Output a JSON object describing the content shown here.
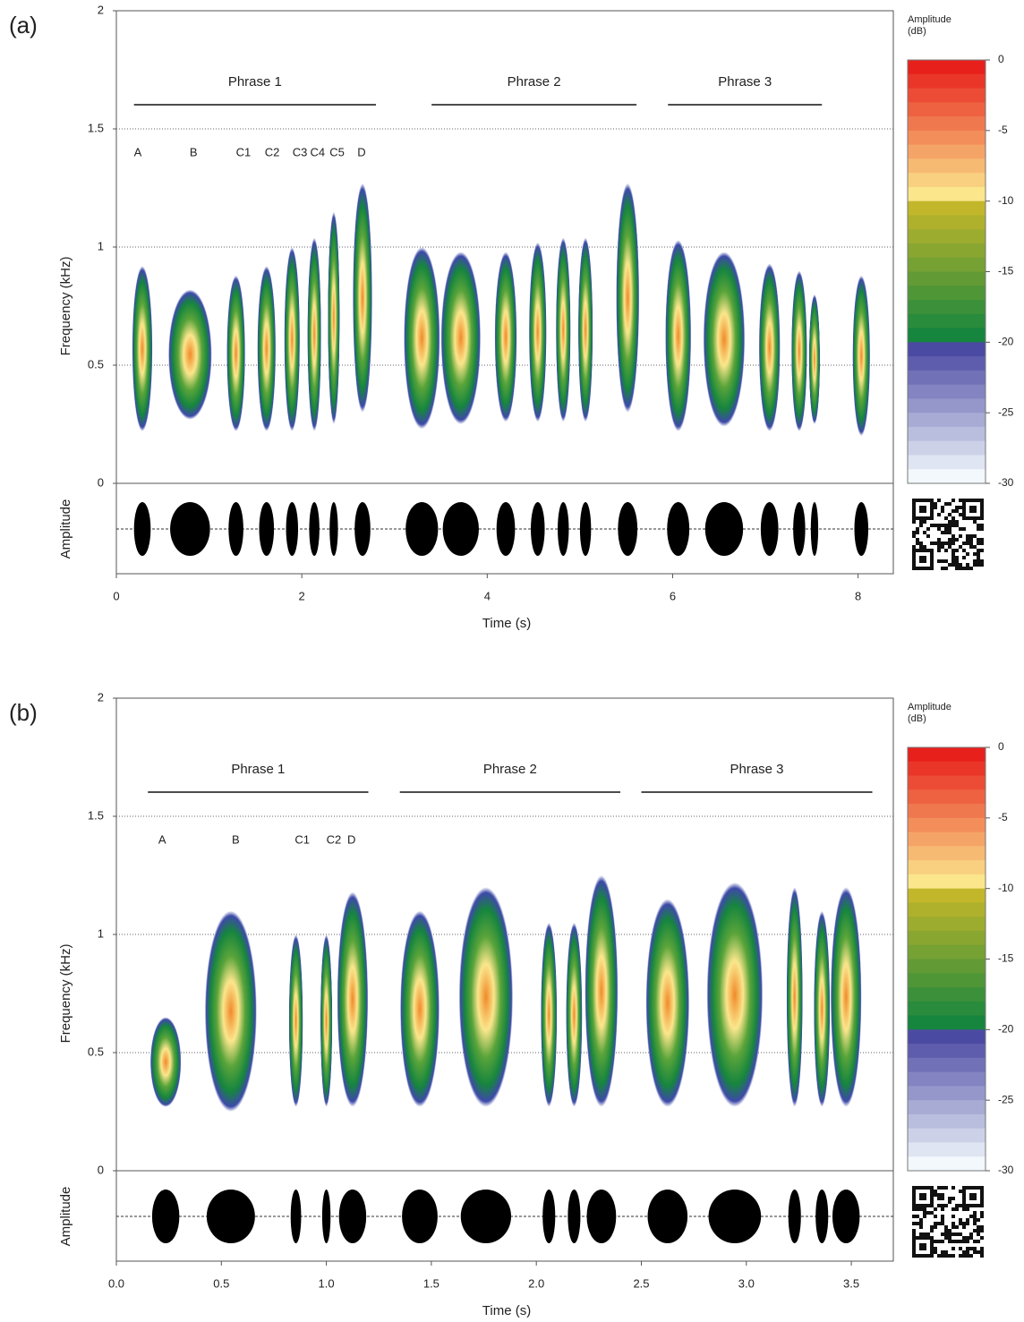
{
  "chart_data": [
    {
      "type": "spectrogram",
      "panel_label": "(a)",
      "ylabel": "Frequency (kHz)",
      "amplitude_label": "Amplitude",
      "xlabel": "Time (s)",
      "xlim": [
        0,
        8.38
      ],
      "xticks": [
        0,
        2,
        4,
        6,
        8
      ],
      "ylim": [
        0,
        2
      ],
      "yticks": [
        0,
        0.5,
        1,
        1.5,
        2
      ],
      "grid": true,
      "phrases": [
        {
          "label": "Phrase 1",
          "start": 0.19,
          "end": 2.8
        },
        {
          "label": "Phrase 2",
          "start": 3.4,
          "end": 5.61
        },
        {
          "label": "Phrase 3",
          "start": 5.95,
          "end": 7.61
        }
      ],
      "syllable_labels": [
        {
          "label": "A",
          "x": 0.19
        },
        {
          "label": "B",
          "x": 0.79
        },
        {
          "label": "C1",
          "x": 1.29
        },
        {
          "label": "C2",
          "x": 1.6
        },
        {
          "label": "C3",
          "x": 1.9
        },
        {
          "label": "C4",
          "x": 2.09
        },
        {
          "label": "C5",
          "x": 2.3
        },
        {
          "label": "D",
          "x": 2.6
        }
      ],
      "segments": [
        {
          "start": 0.19,
          "end": 0.37,
          "low": 0.22,
          "high": 0.92
        },
        {
          "start": 0.58,
          "end": 1.01,
          "low": 0.27,
          "high": 0.82
        },
        {
          "start": 1.21,
          "end": 1.37,
          "low": 0.22,
          "high": 0.88
        },
        {
          "start": 1.54,
          "end": 1.7,
          "low": 0.22,
          "high": 0.92
        },
        {
          "start": 1.83,
          "end": 1.96,
          "low": 0.22,
          "high": 1.0
        },
        {
          "start": 2.08,
          "end": 2.19,
          "low": 0.22,
          "high": 1.04
        },
        {
          "start": 2.3,
          "end": 2.39,
          "low": 0.25,
          "high": 1.15
        },
        {
          "start": 2.57,
          "end": 2.74,
          "low": 0.3,
          "high": 1.27
        },
        {
          "start": 3.12,
          "end": 3.47,
          "low": 0.23,
          "high": 1.0
        },
        {
          "start": 3.52,
          "end": 3.91,
          "low": 0.25,
          "high": 0.98
        },
        {
          "start": 4.1,
          "end": 4.3,
          "low": 0.26,
          "high": 0.98
        },
        {
          "start": 4.47,
          "end": 4.62,
          "low": 0.26,
          "high": 1.02
        },
        {
          "start": 4.76,
          "end": 4.88,
          "low": 0.26,
          "high": 1.04
        },
        {
          "start": 5.0,
          "end": 5.12,
          "low": 0.26,
          "high": 1.04
        },
        {
          "start": 5.41,
          "end": 5.62,
          "low": 0.3,
          "high": 1.27
        },
        {
          "start": 5.94,
          "end": 6.18,
          "low": 0.22,
          "high": 1.03
        },
        {
          "start": 6.35,
          "end": 6.76,
          "low": 0.24,
          "high": 0.98
        },
        {
          "start": 6.95,
          "end": 7.14,
          "low": 0.22,
          "high": 0.93
        },
        {
          "start": 7.3,
          "end": 7.43,
          "low": 0.22,
          "high": 0.9
        },
        {
          "start": 7.49,
          "end": 7.57,
          "low": 0.25,
          "high": 0.8
        },
        {
          "start": 7.96,
          "end": 8.11,
          "low": 0.2,
          "high": 0.88
        }
      ],
      "colorbar": {
        "title": "Amplitude (dB)",
        "lim": [
          -30,
          0
        ],
        "ticks": [
          0,
          -5,
          -10,
          -15,
          -20,
          -25,
          -30
        ],
        "colormap": [
          {
            "from": 0,
            "to": -10,
            "colors": [
              "#e8201c",
              "#fbe68c"
            ]
          },
          {
            "from": -10,
            "to": -20,
            "colors": [
              "#c2b72a",
              "#16853e"
            ]
          },
          {
            "from": -20,
            "to": -30,
            "colors": [
              "#4b4aa3",
              "#f2f8fc"
            ]
          }
        ]
      }
    },
    {
      "type": "spectrogram",
      "panel_label": "(b)",
      "ylabel": "Frequency (kHz)",
      "amplitude_label": "Amplitude",
      "xlabel": "Time (s)",
      "xlim": [
        0,
        3.7
      ],
      "xticks": [
        {
          "value": 0,
          "label": "0.0"
        },
        0.5,
        {
          "value": 1,
          "label": "1.0"
        },
        1.5,
        {
          "value": 2,
          "label": "2.0"
        },
        2.5,
        {
          "value": 3,
          "label": "3.0"
        },
        3.5
      ],
      "ylim": [
        0,
        2
      ],
      "yticks": [
        0,
        0.5,
        1,
        1.5,
        2
      ],
      "grid": true,
      "phrases": [
        {
          "label": "Phrase 1",
          "start": 0.15,
          "end": 1.2
        },
        {
          "label": "Phrase 2",
          "start": 1.35,
          "end": 2.4
        },
        {
          "label": "Phrase 3",
          "start": 2.5,
          "end": 3.6
        }
      ],
      "syllable_labels": [
        {
          "label": "A",
          "x": 0.2
        },
        {
          "label": "B",
          "x": 0.55
        },
        {
          "label": "C1",
          "x": 0.85
        },
        {
          "label": "C2",
          "x": 1.0
        },
        {
          "label": "D",
          "x": 1.1
        }
      ],
      "segments": [
        {
          "start": 0.17,
          "end": 0.3,
          "low": 0.27,
          "high": 0.65
        },
        {
          "start": 0.43,
          "end": 0.66,
          "low": 0.25,
          "high": 1.1
        },
        {
          "start": 0.83,
          "end": 0.88,
          "low": 0.27,
          "high": 1.0
        },
        {
          "start": 0.98,
          "end": 1.02,
          "low": 0.27,
          "high": 1.0
        },
        {
          "start": 1.06,
          "end": 1.19,
          "low": 0.27,
          "high": 1.18
        },
        {
          "start": 1.36,
          "end": 1.53,
          "low": 0.27,
          "high": 1.1
        },
        {
          "start": 1.64,
          "end": 1.88,
          "low": 0.27,
          "high": 1.2
        },
        {
          "start": 2.03,
          "end": 2.09,
          "low": 0.27,
          "high": 1.05
        },
        {
          "start": 2.15,
          "end": 2.21,
          "low": 0.27,
          "high": 1.05
        },
        {
          "start": 2.24,
          "end": 2.38,
          "low": 0.27,
          "high": 1.25
        },
        {
          "start": 2.53,
          "end": 2.72,
          "low": 0.27,
          "high": 1.15
        },
        {
          "start": 2.82,
          "end": 3.07,
          "low": 0.27,
          "high": 1.22
        },
        {
          "start": 3.2,
          "end": 3.26,
          "low": 0.27,
          "high": 1.2
        },
        {
          "start": 3.33,
          "end": 3.39,
          "low": 0.27,
          "high": 1.1
        },
        {
          "start": 3.41,
          "end": 3.54,
          "low": 0.27,
          "high": 1.2
        }
      ],
      "colorbar": {
        "title": "Amplitude (dB)",
        "lim": [
          -30,
          0
        ],
        "ticks": [
          0,
          -5,
          -10,
          -15,
          -20,
          -25,
          -30
        ],
        "colormap": [
          {
            "from": 0,
            "to": -10,
            "colors": [
              "#e8201c",
              "#fbe68c"
            ]
          },
          {
            "from": -10,
            "to": -20,
            "colors": [
              "#c2b72a",
              "#16853e"
            ]
          },
          {
            "from": -20,
            "to": -30,
            "colors": [
              "#4b4aa3",
              "#f2f8fc"
            ]
          }
        ]
      }
    }
  ]
}
